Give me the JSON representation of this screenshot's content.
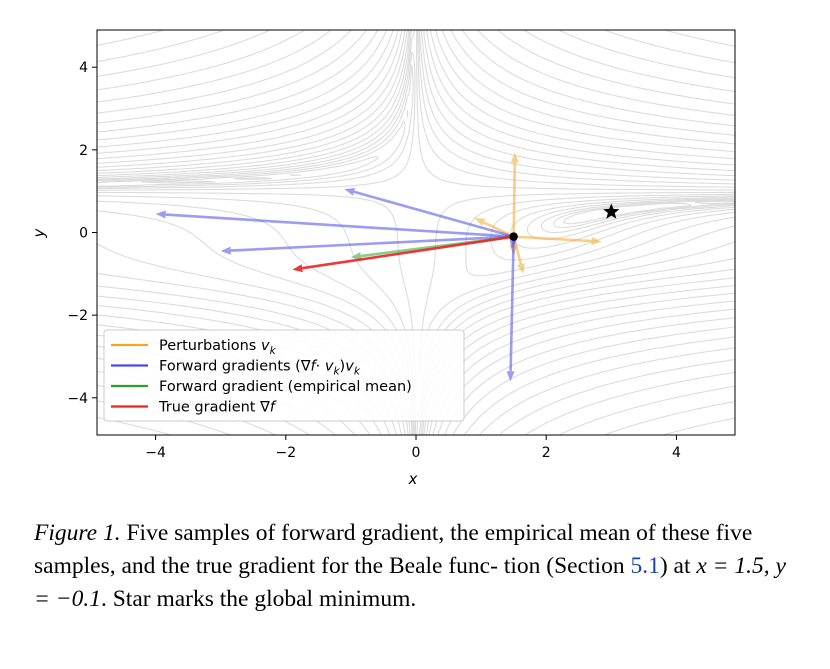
{
  "chart_data": {
    "type": "line",
    "xlabel": "x",
    "ylabel": "y",
    "xlim": [
      -4.9,
      4.9
    ],
    "ylim": [
      -4.9,
      4.9
    ],
    "xticks": [
      -4,
      -2,
      0,
      2,
      4
    ],
    "yticks": [
      -4,
      -2,
      0,
      2,
      4
    ],
    "tick_labels": {
      "x": [
        "−4",
        "−2",
        "0",
        "2",
        "4"
      ],
      "y": [
        "−4",
        "−2",
        "0",
        "2",
        "4"
      ]
    },
    "grid": false,
    "background": "contour lines of the Beale function",
    "point": [
      1.5,
      -0.1
    ],
    "minimum": [
      3.0,
      0.5
    ],
    "series": [
      {
        "name": "Perturbations v_k",
        "color": "#f5a623",
        "vectors": [
          [
            1.5,
            -0.1,
            1.52,
            1.93
          ],
          [
            1.5,
            -0.1,
            2.85,
            -0.22
          ],
          [
            1.5,
            -0.1,
            1.65,
            -1.0
          ],
          [
            1.5,
            -0.1,
            1.5,
            -0.55
          ],
          [
            1.5,
            -0.1,
            0.9,
            0.35
          ]
        ]
      },
      {
        "name": "Forward gradients (∇f · v_k)v_k",
        "color": "#4a4ae8",
        "vectors": [
          [
            1.5,
            -0.1,
            -4.0,
            0.45
          ],
          [
            1.5,
            -0.1,
            -1.1,
            1.05
          ],
          [
            1.5,
            -0.1,
            -3.0,
            -0.45
          ],
          [
            1.5,
            -0.1,
            1.45,
            -3.6
          ],
          [
            1.5,
            -0.1,
            1.47,
            -0.4
          ]
        ]
      },
      {
        "name": "Forward gradient (empirical mean)",
        "color": "#2ca02c",
        "vectors": [
          [
            1.5,
            -0.1,
            -1.0,
            -0.6
          ]
        ]
      },
      {
        "name": "True gradient ∇f",
        "color": "#e8251f",
        "vectors": [
          [
            1.5,
            -0.1,
            -1.9,
            -0.9
          ]
        ]
      }
    ],
    "legend": {
      "placement": "lower-left",
      "entries": [
        {
          "prefix": "Perturbations ",
          "math": "v",
          "sub": "k",
          "suffix": ""
        },
        {
          "prefix": "Forward gradients (",
          "math": "∇f·v",
          "sub": "k",
          "suffix": ")v_k"
        },
        {
          "prefix": "Forward gradient (empirical mean)",
          "math": "",
          "sub": "",
          "suffix": ""
        },
        {
          "prefix": "True gradient ",
          "math": "∇f",
          "sub": "",
          "suffix": ""
        }
      ],
      "entry_texts": [
        "Perturbations v_k",
        "Forward gradients (∇f·v_k)v_k",
        "Forward gradient (empirical mean)",
        "True gradient ∇f"
      ]
    }
  },
  "caption": {
    "label": "Figure 1.",
    "text_1": " Five samples of forward gradient, the empirical mean of these five samples, and the true gradient for the Beale func- tion (Section ",
    "ref": "5.1",
    "text_2": ") at ",
    "math": "x = 1.5, y = −0.1",
    "text_3": ". Star marks the global minimum."
  }
}
